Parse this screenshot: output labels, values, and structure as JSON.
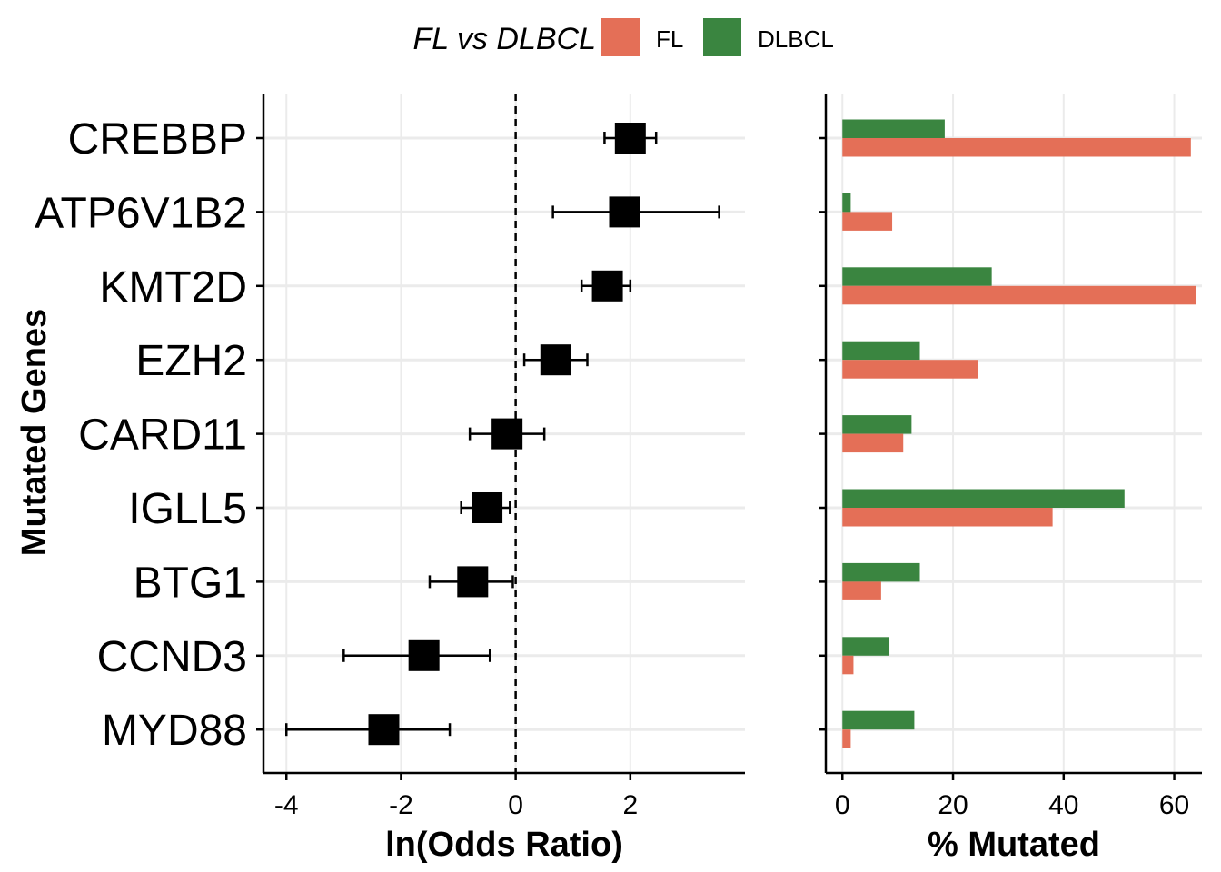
{
  "legend": {
    "title": "FL vs DLBCL",
    "items": [
      {
        "label": "FL",
        "color": "#E46F57"
      },
      {
        "label": "DLBCL",
        "color": "#3A8540"
      }
    ]
  },
  "chart_data": [
    {
      "type": "scatter",
      "subtype": "forest-plot",
      "xlabel": "ln(Odds Ratio)",
      "ylabel": "Mutated Genes",
      "xlim": [
        -4.4,
        4.0
      ],
      "xticks": [
        "-4",
        "-2",
        "0",
        "2"
      ],
      "reference_line": 0,
      "grid": true,
      "categories": [
        "CREBBP",
        "ATP6V1B2",
        "KMT2D",
        "EZH2",
        "CARD11",
        "IGLL5",
        "BTG1",
        "CCND3",
        "MYD88"
      ],
      "estimates": [
        2.0,
        1.9,
        1.6,
        0.7,
        -0.15,
        -0.5,
        -0.75,
        -1.6,
        -2.3
      ],
      "ci_low": [
        1.55,
        0.65,
        1.15,
        0.15,
        -0.8,
        -0.95,
        -1.5,
        -3.0,
        -4.0
      ],
      "ci_high": [
        2.45,
        3.55,
        2.0,
        1.25,
        0.5,
        -0.1,
        -0.05,
        -0.45,
        -1.15
      ]
    },
    {
      "type": "bar",
      "orientation": "horizontal",
      "xlabel": "% Mutated",
      "xlim": [
        -3,
        65
      ],
      "xticks": [
        "0",
        "20",
        "40",
        "60"
      ],
      "grid": true,
      "categories": [
        "CREBBP",
        "ATP6V1B2",
        "KMT2D",
        "EZH2",
        "CARD11",
        "IGLL5",
        "BTG1",
        "CCND3",
        "MYD88"
      ],
      "series": [
        {
          "name": "DLBCL",
          "color": "#3A8540",
          "values": [
            18.5,
            1.5,
            27,
            14,
            12.5,
            51,
            14,
            8.5,
            13
          ]
        },
        {
          "name": "FL",
          "color": "#E46F57",
          "values": [
            63,
            9,
            64,
            24.5,
            11,
            38,
            7,
            2,
            1.5
          ]
        }
      ]
    }
  ]
}
